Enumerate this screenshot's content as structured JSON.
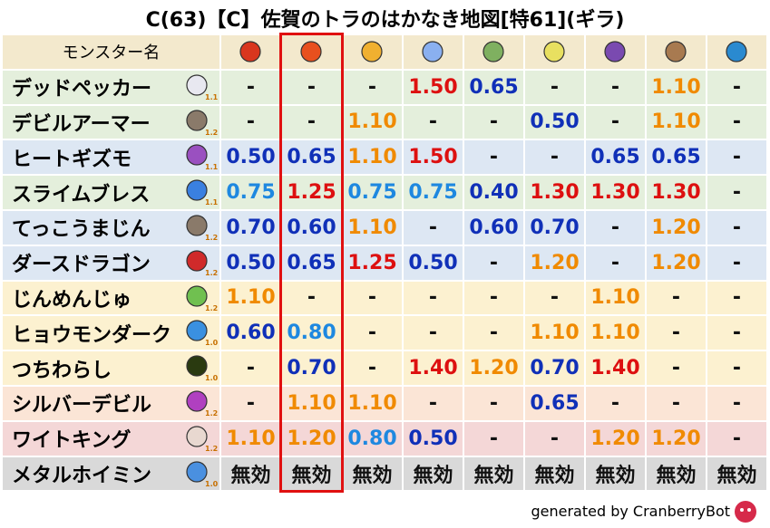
{
  "title": "C(63)【C】佐賀のトラのはかなき地図[特61](ギラ)",
  "table": {
    "header": "モンスター名",
    "highlight_column": 1,
    "rows": [
      {
        "name": "デッドペッカー",
        "weight": "1.1",
        "bg": "#e4efdc",
        "values": [
          "-",
          "-",
          "-",
          "1.50",
          "0.65",
          "-",
          "-",
          "1.10",
          "-"
        ]
      },
      {
        "name": "デビルアーマー",
        "weight": "1.2",
        "bg": "#e4efdc",
        "values": [
          "-",
          "-",
          "1.10",
          "-",
          "-",
          "0.50",
          "-",
          "1.10",
          "-"
        ]
      },
      {
        "name": "ヒートギズモ",
        "weight": "1.1",
        "bg": "#dde7f3",
        "values": [
          "0.50",
          "0.65",
          "1.10",
          "1.50",
          "-",
          "-",
          "0.65",
          "0.65",
          "-"
        ]
      },
      {
        "name": "スライムブレス",
        "weight": "1.1",
        "bg": "#e4efdc",
        "values": [
          "0.75",
          "1.25",
          "0.75",
          "0.75",
          "0.40",
          "1.30",
          "1.30",
          "1.30",
          "-"
        ]
      },
      {
        "name": "てっこうまじん",
        "weight": "1.2",
        "bg": "#dde7f3",
        "values": [
          "0.70",
          "0.60",
          "1.10",
          "-",
          "0.60",
          "0.70",
          "-",
          "1.20",
          "-"
        ]
      },
      {
        "name": "ダースドラゴン",
        "weight": "1.2",
        "bg": "#dde7f3",
        "values": [
          "0.50",
          "0.65",
          "1.25",
          "0.50",
          "-",
          "1.20",
          "-",
          "1.20",
          "-"
        ]
      },
      {
        "name": "じんめんじゅ",
        "weight": "1.2",
        "bg": "#fcf1d0",
        "values": [
          "1.10",
          "-",
          "-",
          "-",
          "-",
          "-",
          "1.10",
          "-",
          "-"
        ]
      },
      {
        "name": "ヒョウモンダーク",
        "weight": "1.0",
        "bg": "#fcf1d0",
        "values": [
          "0.60",
          "0.80",
          "-",
          "-",
          "-",
          "1.10",
          "1.10",
          "-",
          "-"
        ]
      },
      {
        "name": "つちわらし",
        "weight": "1.0",
        "bg": "#fcf1d0",
        "values": [
          "-",
          "0.70",
          "-",
          "1.40",
          "1.20",
          "0.70",
          "1.40",
          "-",
          "-"
        ]
      },
      {
        "name": "シルバーデビル",
        "weight": "1.2",
        "bg": "#fbe5d6",
        "values": [
          "-",
          "1.10",
          "1.10",
          "-",
          "-",
          "0.65",
          "-",
          "-",
          "-"
        ]
      },
      {
        "name": "ワイトキング",
        "weight": "1.2",
        "bg": "#f4d7d7",
        "values": [
          "1.10",
          "1.20",
          "0.80",
          "0.50",
          "-",
          "-",
          "1.20",
          "1.20",
          "-"
        ]
      },
      {
        "name": "メタルホイミン",
        "weight": "1.0",
        "bg": "#d9d9d9",
        "values": [
          "無効",
          "無効",
          "無効",
          "無効",
          "無効",
          "無効",
          "無効",
          "無効",
          "無効"
        ]
      }
    ]
  },
  "footer": "generated by CranberryBot"
}
